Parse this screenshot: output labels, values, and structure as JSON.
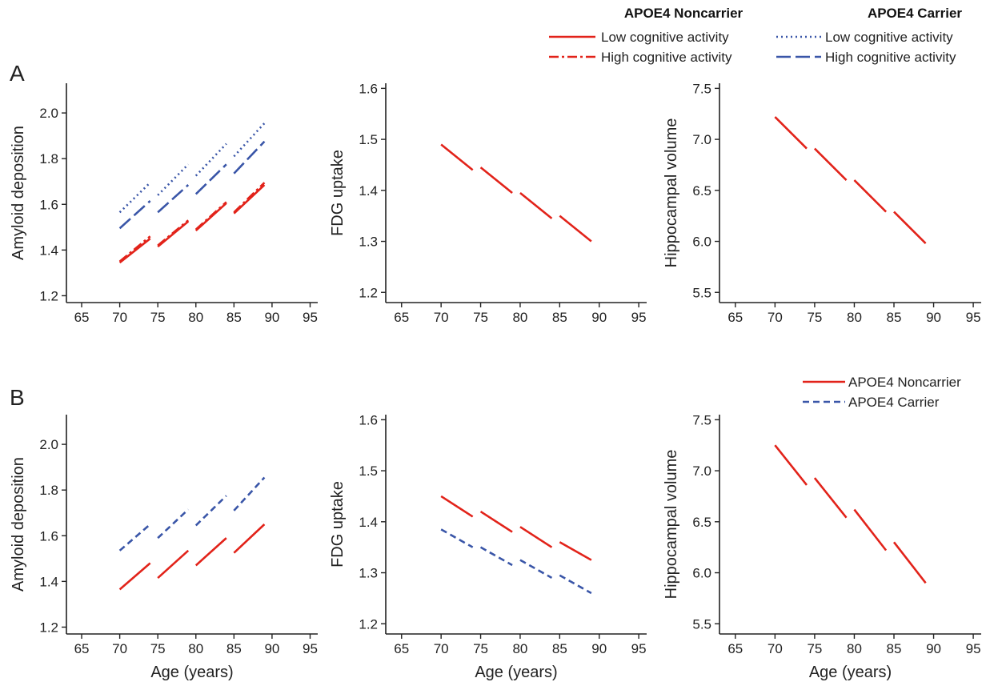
{
  "panel_labels": [
    "A",
    "B"
  ],
  "legend_A": {
    "noncarrier_title": "APOE4 Noncarrier",
    "carrier_title": "APOE4 Carrier",
    "noncarrier_low": "Low cognitive activity",
    "noncarrier_high": "High cognitive activity",
    "carrier_low": "Low cognitive activity",
    "carrier_high": "High cognitive activity"
  },
  "legend_B": {
    "noncarrier": "APOE4 Noncarrier",
    "carrier": "APOE4 Carrier"
  },
  "colors": {
    "noncarrier": "#e2231a",
    "carrier": "#3a56a8"
  },
  "chart_data": [
    {
      "id": "A1",
      "type": "line",
      "xlabel": "",
      "ylabel": "Amyloid deposition",
      "xlim": [
        63,
        96
      ],
      "ylim": [
        1.17,
        2.13
      ],
      "xticks": [
        "65",
        "70",
        "75",
        "80",
        "85",
        "90",
        "95"
      ],
      "yticks": [
        "1.2",
        "1.4",
        "1.6",
        "1.8",
        "2.0"
      ],
      "series": [
        {
          "group": "noncarrier",
          "style": "solid",
          "segments": [
            [
              [
                70,
                1.345
              ],
              [
                74,
                1.45
              ]
            ],
            [
              [
                75,
                1.415
              ],
              [
                79,
                1.525
              ]
            ],
            [
              [
                80,
                1.485
              ],
              [
                84,
                1.605
              ]
            ],
            [
              [
                85,
                1.56
              ],
              [
                89,
                1.685
              ]
            ]
          ]
        },
        {
          "group": "noncarrier",
          "style": "dashdot",
          "segments": [
            [
              [
                70,
                1.35
              ],
              [
                74,
                1.46
              ]
            ],
            [
              [
                75,
                1.42
              ],
              [
                79,
                1.53
              ]
            ],
            [
              [
                80,
                1.49
              ],
              [
                84,
                1.61
              ]
            ],
            [
              [
                85,
                1.565
              ],
              [
                89,
                1.695
              ]
            ]
          ]
        },
        {
          "group": "carrier",
          "style": "dotted",
          "segments": [
            [
              [
                70,
                1.565
              ],
              [
                74,
                1.695
              ]
            ],
            [
              [
                75,
                1.64
              ],
              [
                79,
                1.775
              ]
            ],
            [
              [
                80,
                1.725
              ],
              [
                84,
                1.865
              ]
            ],
            [
              [
                85,
                1.81
              ],
              [
                89,
                1.955
              ]
            ]
          ]
        },
        {
          "group": "carrier",
          "style": "longdash",
          "segments": [
            [
              [
                70,
                1.495
              ],
              [
                74,
                1.615
              ]
            ],
            [
              [
                75,
                1.565
              ],
              [
                79,
                1.685
              ]
            ],
            [
              [
                80,
                1.645
              ],
              [
                84,
                1.775
              ]
            ],
            [
              [
                85,
                1.735
              ],
              [
                89,
                1.875
              ]
            ]
          ]
        }
      ]
    },
    {
      "id": "A2",
      "type": "line",
      "xlabel": "",
      "ylabel": "FDG uptake",
      "xlim": [
        63,
        96
      ],
      "ylim": [
        1.18,
        1.61
      ],
      "xticks": [
        "65",
        "70",
        "75",
        "80",
        "85",
        "90",
        "95"
      ],
      "yticks": [
        "1.2",
        "1.3",
        "1.4",
        "1.5",
        "1.6"
      ],
      "series": [
        {
          "group": "noncarrier",
          "style": "solid",
          "segments": [
            [
              [
                70,
                1.49
              ],
              [
                74,
                1.44
              ]
            ],
            [
              [
                75,
                1.445
              ],
              [
                79,
                1.395
              ]
            ],
            [
              [
                80,
                1.395
              ],
              [
                84,
                1.345
              ]
            ],
            [
              [
                85,
                1.35
              ],
              [
                89,
                1.3
              ]
            ]
          ]
        }
      ]
    },
    {
      "id": "A3",
      "type": "line",
      "xlabel": "",
      "ylabel": "Hippocampal volume",
      "xlim": [
        63,
        96
      ],
      "ylim": [
        5.4,
        7.55
      ],
      "xticks": [
        "65",
        "70",
        "75",
        "80",
        "85",
        "90",
        "95"
      ],
      "yticks": [
        "5.5",
        "6.0",
        "6.5",
        "7.0",
        "7.5"
      ],
      "series": [
        {
          "group": "noncarrier",
          "style": "solid",
          "segments": [
            [
              [
                70,
                7.22
              ],
              [
                74,
                6.91
              ]
            ],
            [
              [
                75,
                6.91
              ],
              [
                79,
                6.6
              ]
            ],
            [
              [
                80,
                6.6
              ],
              [
                84,
                6.29
              ]
            ],
            [
              [
                85,
                6.29
              ],
              [
                89,
                5.98
              ]
            ]
          ]
        }
      ]
    },
    {
      "id": "B1",
      "type": "line",
      "xlabel": "Age (years)",
      "ylabel": "Amyloid deposition",
      "xlim": [
        63,
        96
      ],
      "ylim": [
        1.17,
        2.13
      ],
      "xticks": [
        "65",
        "70",
        "75",
        "80",
        "85",
        "90",
        "95"
      ],
      "yticks": [
        "1.2",
        "1.4",
        "1.6",
        "1.8",
        "2.0"
      ],
      "series": [
        {
          "group": "noncarrier",
          "style": "solid",
          "segments": [
            [
              [
                70,
                1.365
              ],
              [
                74,
                1.48
              ]
            ],
            [
              [
                75,
                1.415
              ],
              [
                79,
                1.535
              ]
            ],
            [
              [
                80,
                1.47
              ],
              [
                84,
                1.59
              ]
            ],
            [
              [
                85,
                1.525
              ],
              [
                89,
                1.65
              ]
            ]
          ]
        },
        {
          "group": "carrier",
          "style": "dashed",
          "segments": [
            [
              [
                70,
                1.535
              ],
              [
                74,
                1.65
              ]
            ],
            [
              [
                75,
                1.59
              ],
              [
                79,
                1.715
              ]
            ],
            [
              [
                80,
                1.645
              ],
              [
                84,
                1.775
              ]
            ],
            [
              [
                85,
                1.71
              ],
              [
                89,
                1.855
              ]
            ]
          ]
        }
      ]
    },
    {
      "id": "B2",
      "type": "line",
      "xlabel": "Age (years)",
      "ylabel": "FDG uptake",
      "xlim": [
        63,
        96
      ],
      "ylim": [
        1.18,
        1.61
      ],
      "xticks": [
        "65",
        "70",
        "75",
        "80",
        "85",
        "90",
        "95"
      ],
      "yticks": [
        "1.2",
        "1.3",
        "1.4",
        "1.5",
        "1.6"
      ],
      "series": [
        {
          "group": "noncarrier",
          "style": "solid",
          "segments": [
            [
              [
                70,
                1.45
              ],
              [
                74,
                1.41
              ]
            ],
            [
              [
                75,
                1.42
              ],
              [
                79,
                1.38
              ]
            ],
            [
              [
                80,
                1.39
              ],
              [
                84,
                1.35
              ]
            ],
            [
              [
                85,
                1.36
              ],
              [
                89,
                1.325
              ]
            ]
          ]
        },
        {
          "group": "carrier",
          "style": "dashed",
          "segments": [
            [
              [
                70,
                1.385
              ],
              [
                74,
                1.35
              ]
            ],
            [
              [
                75,
                1.35
              ],
              [
                79,
                1.315
              ]
            ],
            [
              [
                80,
                1.325
              ],
              [
                84,
                1.29
              ]
            ],
            [
              [
                85,
                1.295
              ],
              [
                89,
                1.26
              ]
            ]
          ]
        }
      ]
    },
    {
      "id": "B3",
      "type": "line",
      "xlabel": "Age (years)",
      "ylabel": "Hippocampal volume",
      "xlim": [
        63,
        96
      ],
      "ylim": [
        5.4,
        7.55
      ],
      "xticks": [
        "65",
        "70",
        "75",
        "80",
        "85",
        "90",
        "95"
      ],
      "yticks": [
        "5.5",
        "6.0",
        "6.5",
        "7.0",
        "7.5"
      ],
      "series": [
        {
          "group": "noncarrier",
          "style": "solid",
          "segments": [
            [
              [
                70,
                7.25
              ],
              [
                74,
                6.86
              ]
            ],
            [
              [
                75,
                6.93
              ],
              [
                79,
                6.54
              ]
            ],
            [
              [
                80,
                6.62
              ],
              [
                84,
                6.22
              ]
            ],
            [
              [
                85,
                6.3
              ],
              [
                89,
                5.9
              ]
            ]
          ]
        }
      ]
    }
  ]
}
